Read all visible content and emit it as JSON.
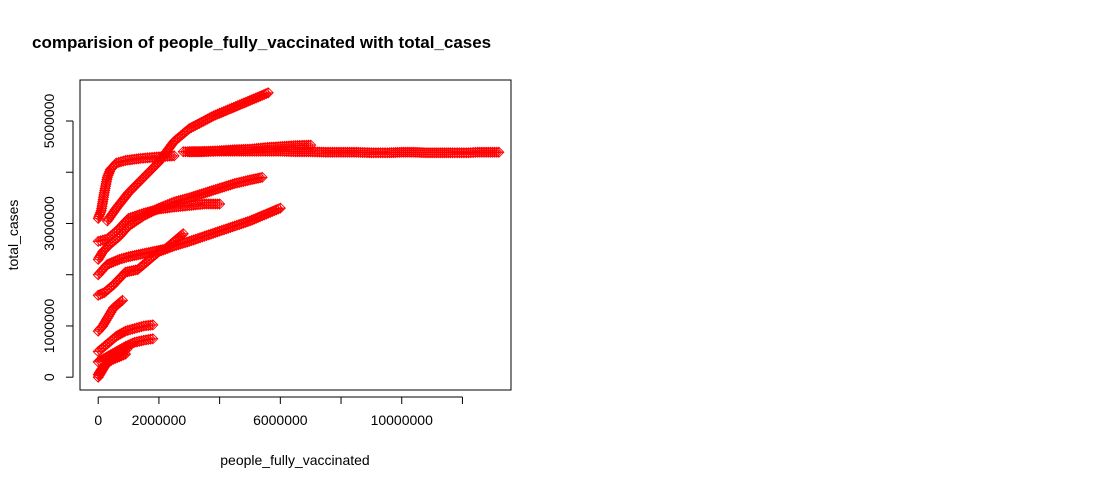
{
  "chart_data": {
    "type": "scatter",
    "title": "comparision of people_fully_vaccinated with total_cases",
    "xlabel": "people_fully_vaccinated",
    "ylabel": "total_cases",
    "xlim": [
      -600000,
      13600000
    ],
    "ylim": [
      -250000,
      5800000
    ],
    "x_ticks": [
      0,
      2000000,
      4000000,
      6000000,
      8000000,
      10000000,
      12000000
    ],
    "x_tick_labels": [
      "0",
      "2000000",
      "",
      "6000000",
      "",
      "10000000",
      ""
    ],
    "y_ticks": [
      0,
      1000000,
      2000000,
      3000000,
      4000000,
      5000000
    ],
    "y_tick_labels": [
      "0",
      "1000000",
      "",
      "3000000",
      "",
      "5000000"
    ],
    "marker": "diamond-plus",
    "color": "#ff0000",
    "grid": false,
    "legend": "none",
    "series": [
      {
        "points": [
          [
            0,
            3100000
          ],
          [
            100000,
            3250000
          ],
          [
            200000,
            3600000
          ],
          [
            300000,
            3900000
          ],
          [
            400000,
            4050000
          ],
          [
            600000,
            4180000
          ],
          [
            900000,
            4230000
          ],
          [
            1400000,
            4270000
          ],
          [
            2000000,
            4300000
          ],
          [
            2500000,
            4320000
          ]
        ]
      },
      {
        "points": [
          [
            300000,
            3050000
          ],
          [
            600000,
            3300000
          ],
          [
            1000000,
            3600000
          ],
          [
            1500000,
            3900000
          ],
          [
            2000000,
            4200000
          ],
          [
            2500000,
            4600000
          ],
          [
            3000000,
            4850000
          ],
          [
            3800000,
            5100000
          ],
          [
            4600000,
            5300000
          ],
          [
            5200000,
            5450000
          ],
          [
            5600000,
            5550000
          ]
        ]
      },
      {
        "points": [
          [
            2800000,
            4400000
          ],
          [
            3400000,
            4400000
          ],
          [
            4000000,
            4420000
          ],
          [
            4500000,
            4440000
          ],
          [
            5000000,
            4450000
          ],
          [
            5500000,
            4480000
          ],
          [
            6000000,
            4500000
          ],
          [
            6500000,
            4520000
          ],
          [
            7000000,
            4530000
          ]
        ]
      },
      {
        "points": [
          [
            3000000,
            4400000
          ],
          [
            4000000,
            4410000
          ],
          [
            5000000,
            4410000
          ],
          [
            6000000,
            4410000
          ],
          [
            6500000,
            4400000
          ],
          [
            7000000,
            4400000
          ],
          [
            7500000,
            4390000
          ],
          [
            8000000,
            4390000
          ],
          [
            8500000,
            4390000
          ],
          [
            9000000,
            4380000
          ],
          [
            9600000,
            4380000
          ],
          [
            10000000,
            4390000
          ],
          [
            10400000,
            4390000
          ],
          [
            10800000,
            4380000
          ],
          [
            11200000,
            4380000
          ],
          [
            11600000,
            4380000
          ],
          [
            12200000,
            4380000
          ],
          [
            12500000,
            4390000
          ],
          [
            13200000,
            4390000
          ]
        ]
      },
      {
        "points": [
          [
            0,
            2300000
          ],
          [
            150000,
            2450000
          ],
          [
            400000,
            2600000
          ],
          [
            700000,
            2750000
          ],
          [
            1000000,
            2950000
          ],
          [
            1500000,
            3150000
          ],
          [
            2000000,
            3300000
          ],
          [
            2500000,
            3420000
          ],
          [
            3000000,
            3500000
          ],
          [
            3800000,
            3650000
          ],
          [
            4500000,
            3780000
          ],
          [
            5000000,
            3850000
          ],
          [
            5400000,
            3900000
          ]
        ]
      },
      {
        "points": [
          [
            0,
            2650000
          ],
          [
            300000,
            2700000
          ],
          [
            600000,
            2850000
          ],
          [
            1000000,
            3100000
          ],
          [
            1500000,
            3200000
          ],
          [
            2000000,
            3280000
          ],
          [
            2500000,
            3320000
          ],
          [
            3000000,
            3350000
          ],
          [
            3500000,
            3380000
          ],
          [
            4000000,
            3380000
          ]
        ]
      },
      {
        "points": [
          [
            0,
            1600000
          ],
          [
            200000,
            1650000
          ],
          [
            500000,
            1800000
          ],
          [
            900000,
            2050000
          ],
          [
            1300000,
            2100000
          ],
          [
            1700000,
            2300000
          ],
          [
            2000000,
            2450000
          ],
          [
            2500000,
            2560000
          ],
          [
            3000000,
            2650000
          ],
          [
            3500000,
            2750000
          ],
          [
            4000000,
            2850000
          ],
          [
            4500000,
            2950000
          ],
          [
            5000000,
            3050000
          ],
          [
            5600000,
            3200000
          ],
          [
            6000000,
            3300000
          ]
        ]
      },
      {
        "points": [
          [
            0,
            2000000
          ],
          [
            300000,
            2200000
          ],
          [
            700000,
            2300000
          ],
          [
            1000000,
            2350000
          ],
          [
            1400000,
            2400000
          ],
          [
            1800000,
            2450000
          ],
          [
            2200000,
            2500000
          ],
          [
            2600000,
            2700000
          ],
          [
            2800000,
            2800000
          ]
        ]
      },
      {
        "points": [
          [
            0,
            900000
          ],
          [
            150000,
            1000000
          ],
          [
            300000,
            1150000
          ],
          [
            500000,
            1350000
          ],
          [
            700000,
            1450000
          ],
          [
            800000,
            1500000
          ]
        ]
      },
      {
        "points": [
          [
            0,
            500000
          ],
          [
            300000,
            650000
          ],
          [
            600000,
            800000
          ],
          [
            900000,
            900000
          ],
          [
            1200000,
            950000
          ],
          [
            1500000,
            1000000
          ],
          [
            1800000,
            1020000
          ]
        ]
      },
      {
        "points": [
          [
            0,
            300000
          ],
          [
            300000,
            400000
          ],
          [
            600000,
            500000
          ],
          [
            900000,
            600000
          ],
          [
            1200000,
            680000
          ],
          [
            1500000,
            720000
          ],
          [
            1800000,
            750000
          ]
        ]
      },
      {
        "points": [
          [
            0,
            0
          ],
          [
            100000,
            100000
          ],
          [
            200000,
            200000
          ],
          [
            350000,
            300000
          ],
          [
            500000,
            350000
          ],
          [
            700000,
            400000
          ],
          [
            900000,
            450000
          ]
        ]
      },
      {
        "points": [
          [
            0,
            50000
          ],
          [
            100000,
            150000
          ],
          [
            250000,
            250000
          ],
          [
            400000,
            350000
          ],
          [
            550000,
            400000
          ],
          [
            700000,
            450000
          ],
          [
            800000,
            500000
          ],
          [
            950000,
            550000
          ]
        ]
      }
    ]
  }
}
